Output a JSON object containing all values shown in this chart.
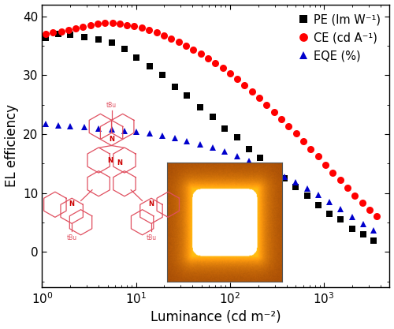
{
  "title": "",
  "xlabel": "Luminance (cd m⁻²)",
  "ylabel": "EL efficiency",
  "ylim": [
    -6,
    42
  ],
  "yticks": [
    0,
    10,
    20,
    30,
    40
  ],
  "legend_PE": "PE (lm W⁻¹)",
  "legend_CE": "CE (cd A⁻¹)",
  "legend_EQE": "EQE (%)",
  "color_PE": "#000000",
  "color_CE": "#ff0000",
  "color_EQE": "#0000cc",
  "PE_x": [
    1.1,
    1.5,
    2.0,
    2.8,
    4.0,
    5.5,
    7.5,
    10,
    14,
    19,
    26,
    35,
    48,
    65,
    88,
    120,
    160,
    210,
    280,
    380,
    500,
    660,
    870,
    1150,
    1500,
    2000,
    2600,
    3400
  ],
  "PE_y": [
    36.3,
    37.0,
    36.8,
    36.5,
    36.0,
    35.5,
    34.5,
    33.0,
    31.5,
    30.0,
    28.0,
    26.5,
    24.5,
    23.0,
    21.0,
    19.5,
    17.5,
    16.0,
    14.0,
    12.5,
    11.0,
    9.5,
    8.0,
    6.5,
    5.5,
    4.0,
    3.0,
    2.0
  ],
  "CE_x": [
    1.1,
    1.3,
    1.6,
    1.9,
    2.3,
    2.7,
    3.3,
    3.9,
    4.7,
    5.6,
    6.7,
    8.0,
    9.6,
    11.5,
    13.8,
    16.5,
    19.8,
    23.7,
    28.4,
    34.0,
    40.7,
    48.7,
    58.3,
    69.8,
    83.5,
    100,
    120,
    143,
    171,
    205,
    246,
    294,
    352,
    422,
    505,
    605,
    724,
    867,
    1038,
    1243,
    1488,
    1782,
    2133,
    2554,
    3058,
    3661
  ],
  "CE_y": [
    37.0,
    37.2,
    37.4,
    37.6,
    37.9,
    38.2,
    38.5,
    38.7,
    38.8,
    38.8,
    38.7,
    38.5,
    38.3,
    38.0,
    37.6,
    37.2,
    36.7,
    36.2,
    35.6,
    35.0,
    34.3,
    33.6,
    32.8,
    32.0,
    31.2,
    30.3,
    29.3,
    28.3,
    27.2,
    26.1,
    25.0,
    23.8,
    22.6,
    21.4,
    20.1,
    18.8,
    17.5,
    16.2,
    14.8,
    13.5,
    12.2,
    10.9,
    9.6,
    8.4,
    7.2,
    6.1
  ],
  "EQE_x": [
    1.1,
    1.5,
    2.0,
    2.8,
    4.0,
    5.5,
    7.5,
    10,
    14,
    19,
    26,
    35,
    48,
    65,
    88,
    120,
    160,
    210,
    280,
    380,
    500,
    660,
    870,
    1150,
    1500,
    2000,
    2600,
    3400
  ],
  "EQE_y": [
    21.8,
    21.5,
    21.3,
    21.2,
    21.0,
    20.8,
    20.6,
    20.4,
    20.1,
    19.7,
    19.3,
    18.8,
    18.3,
    17.7,
    17.0,
    16.3,
    15.5,
    14.7,
    13.8,
    12.8,
    11.8,
    10.8,
    9.7,
    8.5,
    7.3,
    6.0,
    4.8,
    3.7
  ],
  "marker_size_PE": 5.5,
  "marker_size_CE": 6.5,
  "marker_size_EQE": 6.0,
  "bg_color": "#ffffff",
  "spine_color": "#000000",
  "tick_labelsize": 11,
  "label_fontsize": 12,
  "legend_fontsize": 10.5
}
